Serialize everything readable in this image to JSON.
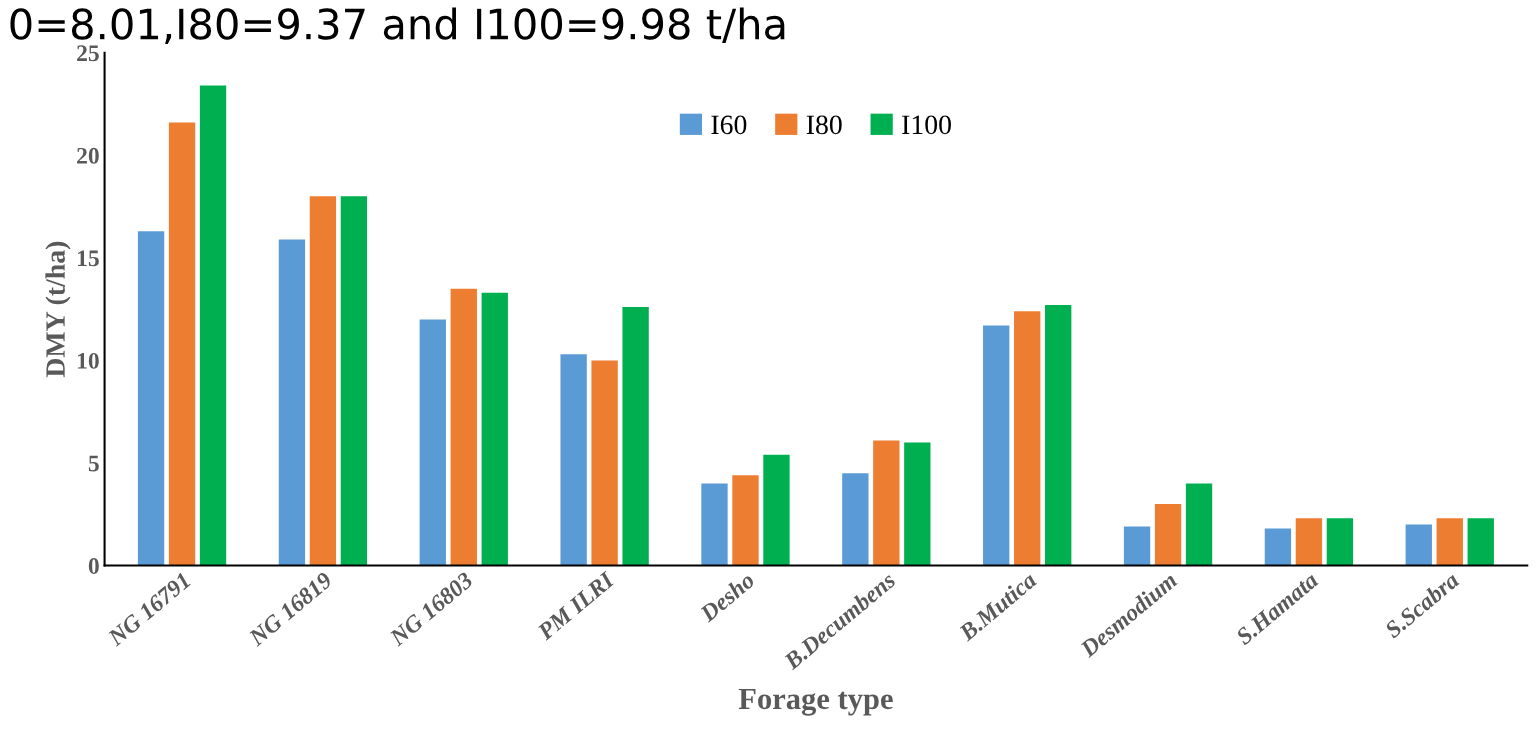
{
  "chart_data": {
    "type": "bar",
    "title": "0=8.01,I80=9.37 and I100=9.98 t/ha",
    "xlabel": "Forage type",
    "ylabel": "DMY (t/ha)",
    "categories": [
      "NG 16791",
      "NG 16819",
      "NG 16803",
      "PM ILRI",
      "Desho",
      "B.Decumbens",
      "B.Mutica",
      "Desmodium",
      "S.Hamata",
      "S.Scabra"
    ],
    "series": [
      {
        "name": "I60",
        "color": "#5b9bd5",
        "values": [
          16.3,
          15.9,
          12.0,
          10.3,
          4.0,
          4.5,
          11.7,
          1.9,
          1.8,
          2.0
        ]
      },
      {
        "name": "I80",
        "color": "#ed7d31",
        "values": [
          21.6,
          18.0,
          13.5,
          10.0,
          4.4,
          6.1,
          12.4,
          3.0,
          2.3,
          2.3
        ]
      },
      {
        "name": "I100",
        "color": "#00b050",
        "values": [
          23.4,
          18.0,
          13.3,
          12.6,
          5.4,
          6.0,
          12.7,
          4.0,
          2.3,
          2.3
        ]
      }
    ],
    "ylim": [
      0,
      25
    ],
    "yticks": [
      0,
      5,
      10,
      15,
      20,
      25
    ],
    "grid": false,
    "legend": "top"
  }
}
